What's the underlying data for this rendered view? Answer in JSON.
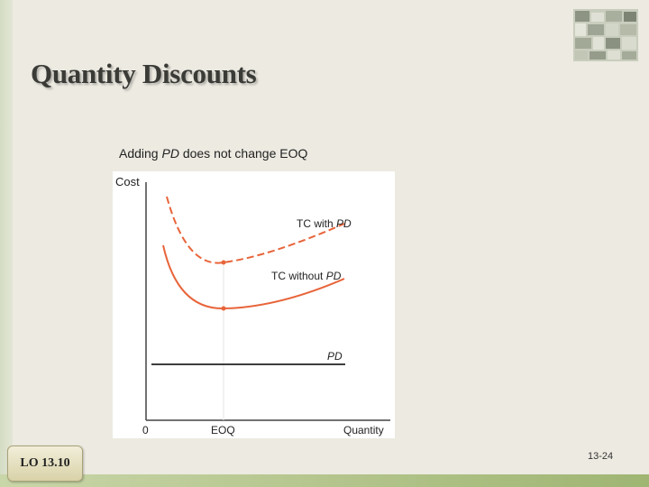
{
  "slide": {
    "title": "Quantity Discounts",
    "subtitle_prefix": "Adding ",
    "subtitle_italic": "PD",
    "subtitle_suffix": " does not change EOQ",
    "lo_label": "LO 13.10",
    "page_number": "13-24"
  },
  "figure": {
    "y_axis_label": "Cost",
    "x_axis_label": "Quantity",
    "origin_label": "0",
    "eoq_label": "EOQ",
    "curve_with_pd_prefix": "TC with ",
    "curve_with_pd_italic": "PD",
    "curve_without_pd_prefix": "TC without ",
    "curve_without_pd_italic": "PD",
    "pd_line_label": "PD",
    "colors": {
      "curves": "#e8643a",
      "axes": "#444444",
      "pd_line": "#222222"
    }
  }
}
